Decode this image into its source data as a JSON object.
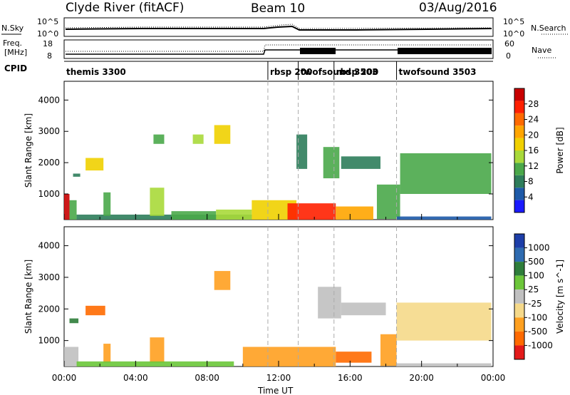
{
  "header": {
    "title": "Clyde River (fitACF)",
    "beam": "Beam 10",
    "date": "03/Aug/2016"
  },
  "noise_panel": {
    "left_label": "N.Sky",
    "left_ticks": [
      "10^5",
      "10^0"
    ],
    "right_label": "N.Search",
    "right_ticks": [
      "10^5",
      "10^0"
    ]
  },
  "freq_panel": {
    "left_label_1": "Freq.",
    "left_label_2": "[MHz]",
    "left_ticks": [
      "18",
      "8"
    ],
    "right_label": "Nave",
    "right_ticks": [
      "60",
      "0"
    ]
  },
  "cpid": {
    "label": "CPID",
    "segments": [
      {
        "name": "themis 3300",
        "start_hour": 0
      },
      {
        "name": "rbsp 200",
        "start_hour": 11.4
      },
      {
        "name": "twofsound 3503",
        "start_hour": 13.1
      },
      {
        "name": "rbsp 200",
        "start_hour": 15.1
      },
      {
        "name": "twofsound 3503",
        "start_hour": 18.6
      }
    ]
  },
  "chart_data": [
    {
      "type": "heatmap",
      "title": "",
      "xlabel": "Time UT",
      "ylabel": "Slant Range [km]",
      "xlim": [
        0,
        24
      ],
      "ylim": [
        180,
        4600
      ],
      "x_ticks": [
        "00:00",
        "04:00",
        "08:00",
        "12:00",
        "16:00",
        "20:00",
        "00:00"
      ],
      "y_ticks": [
        1000,
        2000,
        3000,
        4000
      ],
      "mode_boundaries_hours": [
        11.4,
        13.1,
        15.1,
        18.6
      ],
      "colorbar": {
        "label": "Power [dB]",
        "ticks": [
          4,
          8,
          12,
          16,
          20,
          24,
          28
        ],
        "range": [
          0,
          32
        ],
        "colors": [
          "#1a1aff",
          "#1e5aa8",
          "#2e7d5b",
          "#4aa84a",
          "#a8d93a",
          "#f0d000",
          "#ffa500",
          "#ff6a00",
          "#ff2000",
          "#c80000"
        ]
      },
      "regions": [
        {
          "t0": 0.0,
          "t1": 0.3,
          "r0": 180,
          "r1": 1000,
          "value": 30
        },
        {
          "t0": 0.3,
          "t1": 0.7,
          "r0": 180,
          "r1": 800,
          "value": 10
        },
        {
          "t0": 0.7,
          "t1": 10.5,
          "r0": 180,
          "r1": 340,
          "value": 9
        },
        {
          "t0": 0.5,
          "t1": 0.9,
          "r0": 1550,
          "r1": 1650,
          "value": 8
        },
        {
          "t0": 1.2,
          "t1": 2.2,
          "r0": 1750,
          "r1": 2150,
          "value": 16
        },
        {
          "t0": 2.2,
          "t1": 2.6,
          "r0": 300,
          "r1": 1050,
          "value": 12
        },
        {
          "t0": 4.8,
          "t1": 5.6,
          "r0": 300,
          "r1": 1200,
          "value": 13
        },
        {
          "t0": 5.0,
          "t1": 5.6,
          "r0": 2600,
          "r1": 2900,
          "value": 11
        },
        {
          "t0": 7.2,
          "t1": 7.8,
          "r0": 2600,
          "r1": 2900,
          "value": 14
        },
        {
          "t0": 8.4,
          "t1": 9.3,
          "r0": 2600,
          "r1": 3200,
          "value": 16
        },
        {
          "t0": 6.0,
          "t1": 8.5,
          "r0": 180,
          "r1": 450,
          "value": 12
        },
        {
          "t0": 8.5,
          "t1": 10.5,
          "r0": 180,
          "r1": 500,
          "value": 14
        },
        {
          "t0": 10.5,
          "t1": 13.0,
          "r0": 180,
          "r1": 800,
          "value": 19
        },
        {
          "t0": 12.5,
          "t1": 15.2,
          "r0": 180,
          "r1": 700,
          "value": 28
        },
        {
          "t0": 15.2,
          "t1": 17.3,
          "r0": 180,
          "r1": 600,
          "value": 22
        },
        {
          "t0": 13.0,
          "t1": 13.6,
          "r0": 1800,
          "r1": 2900,
          "value": 8
        },
        {
          "t0": 14.5,
          "t1": 15.4,
          "r0": 1500,
          "r1": 2500,
          "value": 10
        },
        {
          "t0": 15.5,
          "t1": 17.7,
          "r0": 1800,
          "r1": 2200,
          "value": 9
        },
        {
          "t0": 17.5,
          "t1": 18.8,
          "r0": 200,
          "r1": 1300,
          "value": 12
        },
        {
          "t0": 18.8,
          "t1": 23.9,
          "r0": 1000,
          "r1": 2300,
          "value": 10
        },
        {
          "t0": 18.6,
          "t1": 23.9,
          "r0": 180,
          "r1": 280,
          "value": 6
        }
      ]
    },
    {
      "type": "heatmap",
      "title": "",
      "xlabel": "Time UT",
      "ylabel": "Slant Range [km]",
      "xlim": [
        0,
        24
      ],
      "ylim": [
        180,
        4600
      ],
      "x_ticks": [
        "00:00",
        "04:00",
        "08:00",
        "12:00",
        "16:00",
        "20:00",
        "00:00"
      ],
      "y_ticks": [
        1000,
        2000,
        3000,
        4000
      ],
      "mode_boundaries_hours": [
        11.4,
        13.1,
        15.1,
        18.6
      ],
      "colorbar": {
        "label": "Velocity [m s^-1]",
        "ticks": [
          "1000",
          "500",
          "100",
          "25",
          "-25",
          "-100",
          "-500",
          "-1000"
        ],
        "levels": [
          1000,
          500,
          100,
          25,
          -25,
          -100,
          -500,
          -1000
        ],
        "colors": [
          "#1d3ea8",
          "#2e6bb0",
          "#2e7d3a",
          "#6cc63a",
          "#c0c0c0",
          "#f5d98a",
          "#ffa020",
          "#ff6a00",
          "#e31a1a"
        ]
      },
      "regions": [
        {
          "t0": 0.0,
          "t1": 0.8,
          "r0": 180,
          "r1": 800,
          "value": 0
        },
        {
          "t0": 0.3,
          "t1": 0.8,
          "r0": 1550,
          "r1": 1700,
          "value": 150
        },
        {
          "t0": 1.2,
          "t1": 2.3,
          "r0": 1800,
          "r1": 2100,
          "value": -700
        },
        {
          "t0": 2.2,
          "t1": 2.6,
          "r0": 300,
          "r1": 900,
          "value": -200
        },
        {
          "t0": 4.8,
          "t1": 5.6,
          "r0": 300,
          "r1": 1100,
          "value": -300
        },
        {
          "t0": 8.4,
          "t1": 9.3,
          "r0": 2600,
          "r1": 3200,
          "value": -300
        },
        {
          "t0": 0.7,
          "t1": 9.5,
          "r0": 180,
          "r1": 340,
          "value": 50
        },
        {
          "t0": 10.0,
          "t1": 15.2,
          "r0": 180,
          "r1": 800,
          "value": -350
        },
        {
          "t0": 15.2,
          "t1": 17.2,
          "r0": 300,
          "r1": 650,
          "value": -600
        },
        {
          "t0": 14.2,
          "t1": 15.5,
          "r0": 1700,
          "r1": 2700,
          "value": 0
        },
        {
          "t0": 15.5,
          "t1": 18.0,
          "r0": 1800,
          "r1": 2200,
          "value": 0
        },
        {
          "t0": 17.7,
          "t1": 18.6,
          "r0": 200,
          "r1": 1200,
          "value": -300
        },
        {
          "t0": 18.6,
          "t1": 23.9,
          "r0": 1000,
          "r1": 2200,
          "value": -80
        },
        {
          "t0": 18.6,
          "t1": 23.9,
          "r0": 180,
          "r1": 280,
          "value": 0
        }
      ]
    }
  ]
}
